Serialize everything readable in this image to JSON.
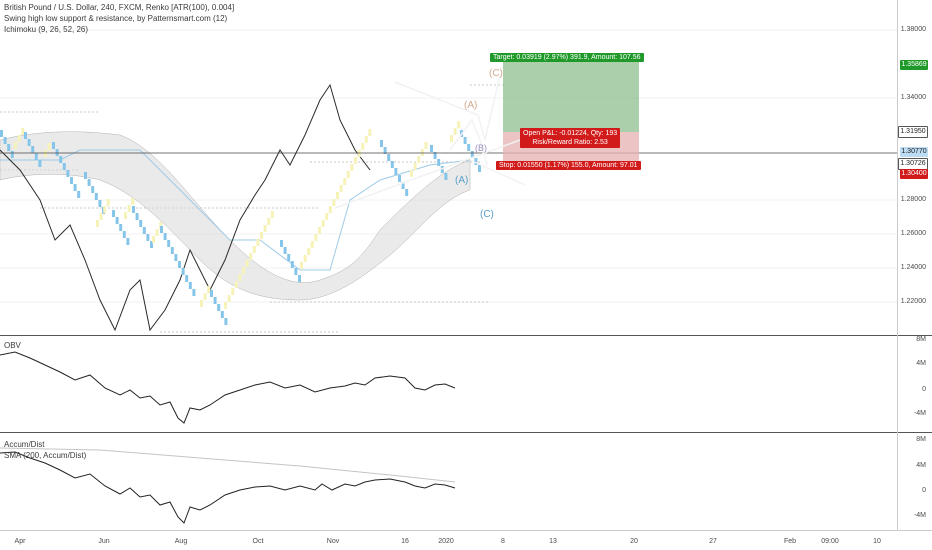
{
  "header": {
    "symbol_line": "British Pound / U.S. Dollar, 240, FXCM, Renko [ATR(100), 0.004]",
    "indicator_1": "Swing high low support & resistance, by Patternsmart.com (12)",
    "indicator_2": "Ichimoku (9, 26, 52, 26)"
  },
  "price_axis": {
    "labels": [
      "1.38000",
      "1.34000",
      "1.28000",
      "1.26000",
      "1.24000",
      "1.22000"
    ],
    "tags": [
      {
        "text": "1.35869",
        "color": "#1f9a2a",
        "text_color": "#ffffff"
      },
      {
        "text": "1.31950",
        "color": "#ffffff",
        "text_color": "#222222"
      },
      {
        "text": "1.30770",
        "color": "#bcdcf5",
        "text_color": "#222222"
      },
      {
        "text": "1.30726",
        "color": "#ffffff",
        "text_color": "#222222"
      },
      {
        "text": "1.30400",
        "color": "#d11b1b",
        "text_color": "#ffffff"
      }
    ]
  },
  "obv_panel": {
    "label": "OBV",
    "axis": [
      "8M",
      "4M",
      "0",
      "-4M"
    ]
  },
  "accdist_panel": {
    "label_1": "Accum/Dist",
    "label_2": "SMA (200, Accum/Dist)",
    "axis": [
      "8M",
      "4M",
      "0",
      "-4M"
    ]
  },
  "time_axis": [
    "Apr",
    "Jun",
    "Aug",
    "Oct",
    "Nov",
    "16",
    "2020",
    "8",
    "13",
    "20",
    "27",
    "Feb",
    "09:00",
    "10"
  ],
  "position_tool": {
    "target": "Target: 0.03919 (2.97%) 391.9, Amount: 107.56",
    "pnl_line1": "Open P&L: -0.01224, Qty: 193",
    "pnl_line2": "Risk/Reward Ratio: 2.53",
    "stop": "Stop: 0.01550 (1.17%) 155.0, Amount: 97.01"
  },
  "wave_labels": {
    "c_top": "(C)",
    "a_top": "(A)",
    "b_mid": "(B)",
    "a_bot": "(A)",
    "c_bot": "(C)"
  },
  "colors": {
    "up_brick": "#f7f3b8",
    "down_brick": "#86c5ea",
    "target_zone": "#8ebf8e",
    "stop_zone": "#e7b0b0",
    "cloud": "#c9c9c9",
    "line": "#222222"
  }
}
